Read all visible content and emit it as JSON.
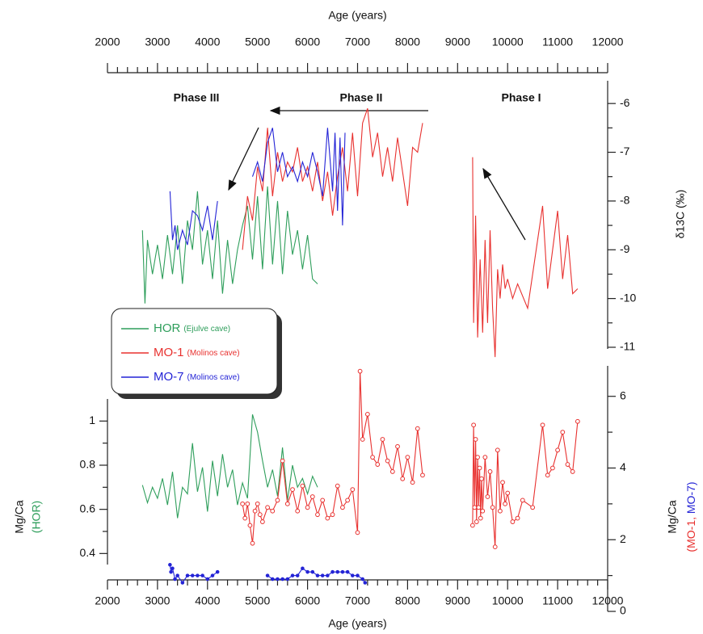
{
  "chart_data": [
    {
      "type": "line",
      "xlabel": "Age (years)",
      "xaxis": "top",
      "yaxis": "right",
      "ylabel": "δ13C (‰)",
      "annotations": [
        "Phase III",
        "Phase II",
        "Phase I"
      ],
      "legend": "upper left",
      "xlim": [
        2000,
        12000
      ],
      "xticks": [
        2000,
        3000,
        4000,
        5000,
        6000,
        7000,
        8000,
        9000,
        10000,
        11000,
        12000
      ],
      "xminorticks": [
        2200,
        2400,
        2600,
        2800,
        3200,
        3400,
        3600,
        3800,
        4200,
        4400,
        4600,
        4800,
        5200,
        5400,
        5600,
        5800,
        6200,
        6400,
        6600,
        6800,
        7200,
        7400,
        7600,
        7800,
        8200,
        8400,
        8600,
        8800,
        9200,
        9400,
        9600,
        9800,
        10200,
        10400,
        10600,
        10800,
        11200,
        11400,
        11600,
        11800
      ],
      "ylim": [
        -11.05,
        -5.55
      ],
      "yticks": [
        -6,
        -7,
        -8,
        -9,
        -10,
        -11
      ],
      "yminorticks": [
        -6.5,
        -7.5,
        -8.5,
        -9.5,
        -10.5
      ],
      "series": [
        {
          "name": "HOR",
          "note": "(Ejulve cave)",
          "color": "#2e9e5b",
          "x": [
            2700,
            2750,
            2800,
            2900,
            3000,
            3100,
            3200,
            3300,
            3400,
            3500,
            3600,
            3700,
            3800,
            3900,
            4000,
            4100,
            4200,
            4300,
            4400,
            4500,
            4600,
            4700,
            4800,
            4900,
            5000,
            5100,
            5200,
            5300,
            5400,
            5500,
            5600,
            5700,
            5800,
            5900,
            6000,
            6100,
            6200
          ],
          "values": [
            -8.6,
            -10.1,
            -8.8,
            -9.5,
            -8.9,
            -9.6,
            -8.7,
            -9.5,
            -8.5,
            -9.7,
            -8.4,
            -9.0,
            -7.8,
            -9.3,
            -8.6,
            -9.6,
            -8.4,
            -9.9,
            -8.8,
            -9.7,
            -9.0,
            -8.5,
            -8.1,
            -9.2,
            -7.9,
            -9.4,
            -7.7,
            -9.3,
            -8.0,
            -9.5,
            -8.2,
            -9.1,
            -8.6,
            -9.4,
            -8.7,
            -9.6,
            -9.7
          ]
        },
        {
          "name": "MO-1",
          "note": "(Molinos cave)",
          "color": "#e8312f",
          "x": [
            4700,
            4800,
            4900,
            5000,
            5100,
            5200,
            5300,
            5400,
            5500,
            5600,
            5700,
            5800,
            5900,
            6000,
            6100,
            6200,
            6300,
            6400,
            6500,
            6600,
            6700,
            6800,
            6900,
            7000,
            7100,
            7200,
            7300,
            7400,
            7500,
            7600,
            7700,
            7800,
            7900,
            8000,
            8100,
            8200,
            8300,
            8400,
            9300,
            9320,
            9360,
            9400,
            9450,
            9500,
            9550,
            9600,
            9650,
            9700,
            9750,
            9800,
            9850,
            9900,
            9950,
            10000,
            10100,
            10200,
            10400,
            10700,
            10800,
            11000,
            11100,
            11200,
            11300,
            11400
          ],
          "values": [
            -9.0,
            -7.9,
            -8.4,
            -7.3,
            -7.8,
            -6.5,
            -7.9,
            -7.0,
            -7.6,
            -7.2,
            -7.4,
            -6.9,
            -7.6,
            -7.3,
            -7.8,
            -7.2,
            -8.0,
            -7.4,
            -8.3,
            -7.5,
            -6.9,
            -7.8,
            -6.6,
            -7.9,
            -6.4,
            -6.1,
            -7.1,
            -6.6,
            -7.5,
            -6.9,
            -7.6,
            -6.7,
            -7.4,
            -8.1,
            -6.9,
            -7.0,
            -6.4,
            null,
            -7.1,
            -10.5,
            -8.3,
            -10.8,
            -9.2,
            -10.7,
            -8.8,
            -10.5,
            -8.6,
            -10.2,
            -11.2,
            -9.4,
            -10.0,
            -9.3,
            -9.8,
            -9.6,
            -10.0,
            -9.7,
            -10.2,
            -8.1,
            -9.8,
            -8.2,
            -9.6,
            -8.7,
            -9.9,
            -9.8
          ]
        },
        {
          "name": "MO-7",
          "note": "(Molinos cave)",
          "color": "#2424d6",
          "x": [
            3250,
            3300,
            3350,
            3400,
            3500,
            3600,
            3700,
            3800,
            3900,
            4000,
            4100,
            4200,
            4300,
            4900,
            5000,
            5100,
            5200,
            5300,
            5400,
            5500,
            5600,
            5700,
            5800,
            5900,
            6000,
            6100,
            6200,
            6300,
            6400,
            6500,
            6550,
            6600,
            6650,
            6700,
            6750
          ],
          "values": [
            -7.8,
            -8.8,
            -8.5,
            -9.0,
            -8.6,
            -8.9,
            -8.2,
            -8.3,
            -8.6,
            -8.1,
            -8.8,
            -8.0,
            null,
            -7.5,
            -7.2,
            -7.6,
            -6.8,
            -6.5,
            -7.4,
            -7.0,
            -7.5,
            -7.3,
            -7.6,
            -7.2,
            -7.5,
            -7.0,
            -7.4,
            -7.9,
            -6.5,
            -7.8,
            -6.6,
            -8.2,
            -6.7,
            -8.5,
            -6.6
          ]
        }
      ]
    },
    {
      "type": "line",
      "xlabel": "Age (years)",
      "xaxis": "bottom",
      "ylabel": "Mg/Ca",
      "ylabel_note": "(HOR)",
      "ylabel_note_color": "#2e9e5b",
      "y2label": "Mg/Ca",
      "y2label_note": [
        "(MO-1,",
        " MO-7)"
      ],
      "y2label_note_colors": [
        "#e8312f",
        "#2424d6"
      ],
      "xlim": [
        2000,
        12000
      ],
      "xticks": [
        2000,
        3000,
        4000,
        5000,
        6000,
        7000,
        8000,
        9000,
        10000,
        11000,
        12000
      ],
      "xminorticks": [
        2200,
        2400,
        2600,
        2800,
        3200,
        3400,
        3600,
        3800,
        4200,
        4400,
        4600,
        4800,
        5200,
        5400,
        5600,
        5800,
        6200,
        6400,
        6600,
        6800,
        7200,
        7400,
        7600,
        7800,
        8200,
        8400,
        8600,
        8800,
        9200,
        9400,
        9600,
        9800,
        10200,
        10400,
        10600,
        10800,
        11200,
        11400,
        11600,
        11800
      ],
      "ylim": [
        0.35,
        1.1
      ],
      "yticks": [
        0.4,
        0.6,
        0.8,
        1
      ],
      "yminorticks": [
        0.5,
        0.7,
        0.9
      ],
      "y2lim": [
        0,
        6.85
      ],
      "y2ticks": [
        0,
        2,
        4,
        6
      ],
      "y2minorticks": [
        1,
        3,
        5
      ],
      "series": [
        {
          "color": "#2e9e5b",
          "marker": "none",
          "x": [
            2700,
            2800,
            2900,
            3000,
            3100,
            3200,
            3300,
            3400,
            3500,
            3600,
            3700,
            3800,
            3900,
            4000,
            4100,
            4200,
            4300,
            4400,
            4500,
            4600,
            4700,
            4800,
            4900,
            5000,
            5100,
            5200,
            5300,
            5400,
            5500,
            5600,
            5700,
            5800,
            5900,
            6000,
            6100,
            6200
          ],
          "values": [
            0.71,
            0.63,
            0.7,
            0.65,
            0.74,
            0.62,
            0.77,
            0.56,
            0.7,
            0.67,
            0.9,
            0.68,
            0.79,
            0.59,
            0.82,
            0.66,
            0.85,
            0.7,
            0.78,
            0.62,
            0.72,
            0.65,
            1.03,
            0.95,
            0.82,
            0.7,
            0.78,
            0.66,
            0.88,
            0.64,
            0.8,
            0.7,
            0.74,
            0.67,
            0.75,
            0.7
          ]
        },
        {
          "color": "#e8312f",
          "axis": "y2",
          "marker": "open-circle",
          "x": [
            4700,
            4750,
            4800,
            4850,
            4900,
            4950,
            5000,
            5050,
            5100,
            5200,
            5300,
            5400,
            5500,
            5600,
            5700,
            5800,
            5900,
            6000,
            6100,
            6200,
            6300,
            6400,
            6500,
            6600,
            6700,
            6800,
            6900,
            7000,
            7050,
            7100,
            7200,
            7300,
            7400,
            7500,
            7600,
            7700,
            7800,
            7900,
            8000,
            8100,
            8200,
            8300,
            8400,
            9300,
            9320,
            9340,
            9360,
            9380,
            9400,
            9420,
            9440,
            9460,
            9480,
            9500,
            9550,
            9600,
            9650,
            9700,
            9750,
            9800,
            9850,
            9900,
            9950,
            10000,
            10100,
            10200,
            10300,
            10500,
            10700,
            10800,
            10900,
            11000,
            11100,
            11200,
            11300,
            11400
          ],
          "values": [
            3.0,
            2.6,
            3.0,
            2.4,
            1.9,
            2.8,
            3.0,
            2.7,
            2.5,
            2.9,
            2.8,
            3.1,
            4.2,
            3.0,
            3.4,
            2.8,
            3.5,
            2.9,
            3.2,
            2.7,
            3.1,
            2.6,
            2.7,
            3.5,
            2.9,
            3.1,
            3.4,
            2.2,
            6.7,
            4.8,
            5.5,
            4.3,
            4.1,
            4.8,
            4.2,
            3.9,
            4.6,
            3.7,
            4.3,
            3.6,
            5.1,
            3.8,
            null,
            2.4,
            5.2,
            2.9,
            4.8,
            2.5,
            4.3,
            2.9,
            4.0,
            2.6,
            3.7,
            2.8,
            4.3,
            3.2,
            3.9,
            2.9,
            1.8,
            4.5,
            2.8,
            3.6,
            3.0,
            3.3,
            2.5,
            2.6,
            3.1,
            2.9,
            5.2,
            3.8,
            4.0,
            4.5,
            5.0,
            4.1,
            3.9,
            5.3
          ]
        },
        {
          "color": "#2424d6",
          "axis": "y2",
          "marker": "dot",
          "x": [
            3250,
            3270,
            3300,
            3350,
            3400,
            3500,
            3600,
            3700,
            3800,
            3900,
            4000,
            4100,
            4200,
            4300,
            5200,
            5300,
            5400,
            5500,
            5600,
            5700,
            5800,
            5900,
            6000,
            6100,
            6200,
            6300,
            6400,
            6500,
            6600,
            6700,
            6800,
            6900,
            7000,
            7100,
            7150
          ],
          "values": [
            1.3,
            1.1,
            1.2,
            0.9,
            1.0,
            0.8,
            1.0,
            1.0,
            1.0,
            1.0,
            0.9,
            1.0,
            1.1,
            null,
            1.0,
            0.9,
            0.9,
            0.9,
            0.9,
            1.0,
            1.0,
            1.2,
            1.1,
            1.1,
            1.0,
            1.0,
            1.0,
            1.1,
            1.1,
            1.1,
            1.1,
            1.0,
            1.0,
            0.9,
            0.8
          ]
        }
      ]
    }
  ]
}
